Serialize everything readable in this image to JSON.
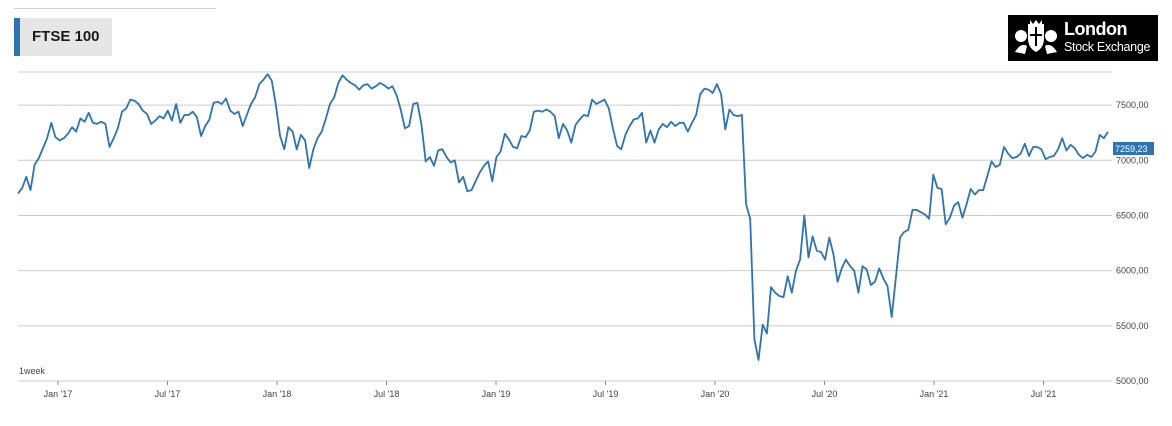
{
  "header": {
    "title": "FTSE 100"
  },
  "logo": {
    "name": "London",
    "sub": "Stock Exchange",
    "color": "#000000"
  },
  "range_label": "1week",
  "colors": {
    "line": "#2c74b3",
    "grid": "#cccccc",
    "accent": "#2c74b3",
    "last_value_bg": "#2c74b3"
  },
  "chart_data": {
    "type": "line",
    "title": "FTSE 100",
    "xlabel": "",
    "ylabel": "",
    "ylim": [
      5000,
      7800
    ],
    "yticks": [
      5000,
      5500,
      6000,
      6500,
      7000,
      7500
    ],
    "ytick_labels": [
      "5000,00",
      "5500,00",
      "6000,00",
      "6500,00",
      "7000,00",
      "7500,00"
    ],
    "xtick_labels": [
      "Jan '17",
      "Jul '17",
      "Jan '18",
      "Jul '18",
      "Jan '19",
      "Jul '19",
      "Jan '20",
      "Jul '20",
      "Jan '21",
      "Jul '21"
    ],
    "last_value_label": "7259,23",
    "grid": true,
    "series": [
      {
        "name": "",
        "values": [
          6700,
          6750,
          6850,
          6730,
          6960,
          7020,
          7110,
          7200,
          7340,
          7210,
          7180,
          7200,
          7240,
          7300,
          7260,
          7380,
          7350,
          7430,
          7340,
          7330,
          7350,
          7330,
          7120,
          7200,
          7290,
          7440,
          7470,
          7550,
          7540,
          7510,
          7450,
          7420,
          7330,
          7360,
          7400,
          7380,
          7450,
          7360,
          7510,
          7340,
          7410,
          7410,
          7440,
          7390,
          7220,
          7310,
          7370,
          7520,
          7530,
          7510,
          7560,
          7450,
          7420,
          7440,
          7310,
          7410,
          7510,
          7570,
          7690,
          7730,
          7780,
          7720,
          7500,
          7220,
          7100,
          7300,
          7260,
          7100,
          7230,
          7180,
          6930,
          7100,
          7200,
          7260,
          7380,
          7510,
          7570,
          7700,
          7770,
          7730,
          7700,
          7680,
          7640,
          7680,
          7690,
          7650,
          7670,
          7700,
          7680,
          7650,
          7670,
          7590,
          7460,
          7290,
          7310,
          7510,
          7520,
          7320,
          6990,
          7030,
          6950,
          7090,
          7100,
          7030,
          6980,
          7000,
          6800,
          6850,
          6720,
          6730,
          6810,
          6890,
          6950,
          6990,
          6810,
          7030,
          7080,
          7240,
          7190,
          7120,
          7110,
          7220,
          7210,
          7270,
          7440,
          7450,
          7440,
          7460,
          7440,
          7400,
          7200,
          7330,
          7270,
          7160,
          7320,
          7370,
          7410,
          7400,
          7550,
          7510,
          7530,
          7550,
          7470,
          7290,
          7130,
          7100,
          7230,
          7310,
          7370,
          7380,
          7430,
          7160,
          7270,
          7160,
          7280,
          7330,
          7300,
          7350,
          7310,
          7340,
          7340,
          7260,
          7340,
          7410,
          7600,
          7650,
          7640,
          7610,
          7690,
          7600,
          7280,
          7460,
          7410,
          7400,
          7410,
          6600,
          6470,
          5380,
          5190,
          5510,
          5430,
          5850,
          5800,
          5770,
          5760,
          5950,
          5800,
          6000,
          6100,
          6500,
          6120,
          6310,
          6180,
          6170,
          6100,
          6300,
          6150,
          5900,
          6020,
          6100,
          6040,
          6000,
          5800,
          6040,
          6010,
          5870,
          5900,
          6020,
          5930,
          5860,
          5580,
          5930,
          6300,
          6350,
          6370,
          6550,
          6550,
          6530,
          6510,
          6470,
          6870,
          6750,
          6740,
          6420,
          6480,
          6590,
          6620,
          6480,
          6600,
          6740,
          6690,
          6730,
          6730,
          6860,
          6990,
          6940,
          6960,
          7120,
          7060,
          7020,
          7030,
          7060,
          7150,
          7040,
          7120,
          7120,
          7100,
          7010,
          7030,
          7040,
          7100,
          7200,
          7090,
          7140,
          7110,
          7050,
          7020,
          7050,
          7030,
          7080,
          7230,
          7200,
          7259.23
        ]
      }
    ]
  }
}
